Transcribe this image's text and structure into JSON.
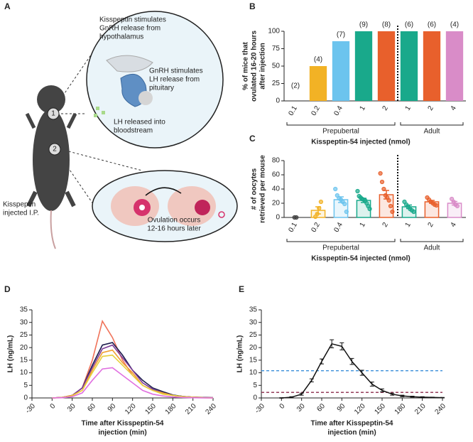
{
  "illustration": {
    "panel": "A",
    "step1": [
      "Kisspeptin stimulates",
      "GnRH release from",
      "hypothalamus"
    ],
    "step2": [
      "GnRH stimulates",
      "LH release from",
      "pituitary"
    ],
    "step3": [
      "LH released into",
      "bloodstream"
    ],
    "step4": [
      "Ovulation occurs",
      "12-16 hours later"
    ],
    "injection": [
      "Kisspeptin",
      "injected I.P."
    ],
    "marker1": "1",
    "marker2": "2"
  },
  "chart_data": [
    {
      "type": "bar",
      "panel": "B",
      "ylabel": [
        "% of mice that",
        "ovulated 16-20 hours",
        "after injection"
      ],
      "xlabel": "Kisspeptin-54 injected (nmol)",
      "categories": [
        "0.1",
        "0.2",
        "0.4",
        "1",
        "2",
        "1",
        "2",
        "4"
      ],
      "groups": [
        "Prepubertal",
        "Adult"
      ],
      "values": [
        0,
        50,
        85.7,
        100,
        100,
        100,
        100,
        100
      ],
      "n_labels": [
        "(2)",
        "(4)",
        "(7)",
        "(9)",
        "(8)",
        "(6)",
        "(6)",
        "(4)"
      ],
      "colors": [
        "#888888",
        "#f2b225",
        "#6cc4ee",
        "#19a98b",
        "#e8602c",
        "#19a98b",
        "#e8602c",
        "#d98cc8"
      ],
      "ylim": [
        0,
        100
      ],
      "yticks": [
        0,
        25,
        50,
        75,
        100
      ]
    },
    {
      "type": "dotbar",
      "panel": "C",
      "ylabel": [
        "# of oocytes",
        "retrieved per mouse"
      ],
      "xlabel": "Kisspeptin-54 injected (nmol)",
      "categories": [
        "0.1",
        "0.2",
        "0.4",
        "1",
        "2",
        "1",
        "2",
        "4"
      ],
      "groups": [
        "Prepubertal",
        "Adult"
      ],
      "values": [
        0,
        10,
        25,
        24,
        32,
        15,
        22,
        20
      ],
      "errors": [
        0,
        5,
        4,
        3,
        6,
        2.5,
        2,
        2.5
      ],
      "points": [
        [
          0,
          0
        ],
        [
          1,
          5,
          13,
          22
        ],
        [
          40,
          31,
          27,
          25,
          22,
          19,
          8
        ],
        [
          37,
          30,
          28,
          26,
          25,
          24,
          20,
          16,
          12
        ],
        [
          62,
          50,
          40,
          31,
          28,
          24,
          16,
          8
        ],
        [
          22,
          18,
          15,
          12,
          10,
          8
        ],
        [
          28,
          25,
          22,
          20,
          18,
          17
        ],
        [
          26,
          22,
          18,
          16
        ]
      ],
      "colors": [
        "#444444",
        "#f2b225",
        "#6cc4ee",
        "#19a98b",
        "#e8602c",
        "#19a98b",
        "#e8602c",
        "#d98cc8"
      ],
      "ylim": [
        0,
        80
      ],
      "yticks": [
        0,
        20,
        40,
        60,
        80
      ]
    },
    {
      "type": "line",
      "panel": "D",
      "ylabel": "LH (ng/mL)",
      "xlabel": [
        "Time after Kisspeptin-54",
        "injection (min)"
      ],
      "x": [
        0,
        15,
        30,
        45,
        60,
        75,
        90,
        105,
        120,
        135,
        150,
        165,
        180,
        195,
        210,
        225,
        240
      ],
      "series": [
        {
          "color": "#f0735a",
          "values": [
            0,
            0.2,
            1,
            4,
            15,
            30.5,
            24,
            15,
            9,
            5,
            3,
            2,
            1,
            0.6,
            0.3,
            0.2,
            0.1
          ]
        },
        {
          "color": "#1d1d4d",
          "values": [
            0,
            0.2,
            1,
            4,
            13,
            21,
            22,
            17,
            11,
            7,
            4,
            2.5,
            1.2,
            0.6,
            0.3,
            0.2,
            0.1
          ]
        },
        {
          "color": "#7d3c98",
          "values": [
            0,
            0.2,
            1,
            4,
            12,
            19.5,
            21,
            16,
            11,
            6,
            3.5,
            2,
            1,
            0.5,
            0.3,
            0.1,
            0.1
          ]
        },
        {
          "color": "#f0a030",
          "values": [
            0,
            0.2,
            1,
            3,
            11,
            18,
            19,
            14,
            10,
            5,
            3,
            2,
            1,
            0.5,
            0.3,
            0.1,
            0
          ]
        },
        {
          "color": "#e8d040",
          "values": [
            0,
            0.1,
            0.8,
            3,
            10,
            16.5,
            17,
            13,
            9,
            5,
            3,
            1.5,
            1,
            0.5,
            0.2,
            0.1,
            0
          ]
        },
        {
          "color": "#e070e0",
          "values": [
            0,
            0.1,
            0.5,
            2,
            7,
            11.5,
            12,
            9,
            6,
            3,
            1.5,
            0.8,
            0.4,
            0.2,
            0.1,
            0,
            0
          ]
        }
      ],
      "xlim": [
        -30,
        240
      ],
      "xticks": [
        -30,
        0,
        30,
        60,
        90,
        120,
        150,
        180,
        210,
        240
      ],
      "ylim": [
        0,
        35
      ],
      "yticks": [
        0,
        5,
        10,
        15,
        20,
        25,
        30,
        35
      ]
    },
    {
      "type": "errorline",
      "panel": "E",
      "ylabel": "LH (ng/mL)",
      "xlabel": [
        "Time after Kisspeptin-54",
        "injection (min)"
      ],
      "x": [
        0,
        15,
        30,
        45,
        60,
        75,
        90,
        105,
        120,
        135,
        150,
        165,
        180,
        195,
        210,
        225,
        240
      ],
      "color": "#111111",
      "values": [
        0,
        0.3,
        1.5,
        7,
        14.5,
        21.5,
        20.5,
        14.5,
        10,
        5.5,
        3,
        1.5,
        0.8,
        0.5,
        0.3,
        0.2,
        0.1
      ],
      "errors": [
        0.1,
        0.2,
        0.4,
        0.6,
        1,
        1.6,
        1.4,
        1.2,
        1,
        0.8,
        0.6,
        0.4,
        0.3,
        0.2,
        0.2,
        0.1,
        0.1
      ],
      "reference_lines": [
        {
          "value": 10.8,
          "color": "#3a8fd9"
        },
        {
          "value": 2.2,
          "color": "#8b2a4a"
        }
      ],
      "xlim": [
        -30,
        240
      ],
      "xticks": [
        -30,
        0,
        30,
        60,
        90,
        120,
        150,
        180,
        210,
        240
      ],
      "ylim": [
        0,
        35
      ],
      "yticks": [
        0,
        5,
        10,
        15,
        20,
        25,
        30,
        35
      ]
    }
  ]
}
